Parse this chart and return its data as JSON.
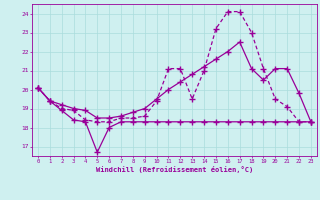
{
  "xlabel": "Windchill (Refroidissement éolien,°C)",
  "background_color": "#cff0f0",
  "grid_color": "#aadddd",
  "line_color": "#990099",
  "xlim": [
    -0.5,
    23.5
  ],
  "ylim": [
    16.5,
    24.5
  ],
  "yticks": [
    17,
    18,
    19,
    20,
    21,
    22,
    23,
    24
  ],
  "xticks": [
    0,
    1,
    2,
    3,
    4,
    5,
    6,
    7,
    8,
    9,
    10,
    11,
    12,
    13,
    14,
    15,
    16,
    17,
    18,
    19,
    20,
    21,
    22,
    23
  ],
  "line1_x": [
    0,
    1,
    2,
    3,
    4,
    5,
    6,
    7,
    8,
    9,
    10,
    11,
    12,
    13,
    14,
    15,
    16,
    17,
    18,
    19,
    20,
    21,
    22,
    23
  ],
  "line1_y": [
    20.1,
    19.4,
    18.9,
    18.4,
    18.3,
    16.7,
    18.0,
    18.3,
    18.3,
    18.3,
    18.3,
    18.3,
    18.3,
    18.3,
    18.3,
    18.3,
    18.3,
    18.3,
    18.3,
    18.3,
    18.3,
    18.3,
    18.3,
    18.3
  ],
  "line2_x": [
    0,
    1,
    2,
    3,
    4,
    5,
    6,
    7,
    8,
    9,
    10,
    11,
    12,
    13,
    14,
    15,
    16,
    17,
    18,
    19,
    20,
    21,
    22,
    23
  ],
  "line2_y": [
    20.1,
    19.4,
    19.0,
    18.9,
    18.4,
    18.3,
    18.3,
    18.5,
    18.5,
    18.6,
    19.4,
    21.1,
    21.1,
    19.5,
    21.0,
    23.2,
    24.1,
    24.1,
    23.0,
    21.1,
    19.5,
    19.1,
    18.3,
    18.3
  ],
  "line3_x": [
    0,
    1,
    2,
    3,
    4,
    5,
    6,
    7,
    8,
    9,
    10,
    11,
    12,
    13,
    14,
    15,
    16,
    17,
    18,
    19,
    20,
    21,
    22,
    23
  ],
  "line3_y": [
    20.1,
    19.4,
    19.2,
    19.0,
    18.9,
    18.5,
    18.5,
    18.6,
    18.8,
    19.0,
    19.5,
    20.0,
    20.4,
    20.8,
    21.2,
    21.6,
    22.0,
    22.5,
    21.1,
    20.5,
    21.1,
    21.1,
    19.8,
    18.3
  ]
}
